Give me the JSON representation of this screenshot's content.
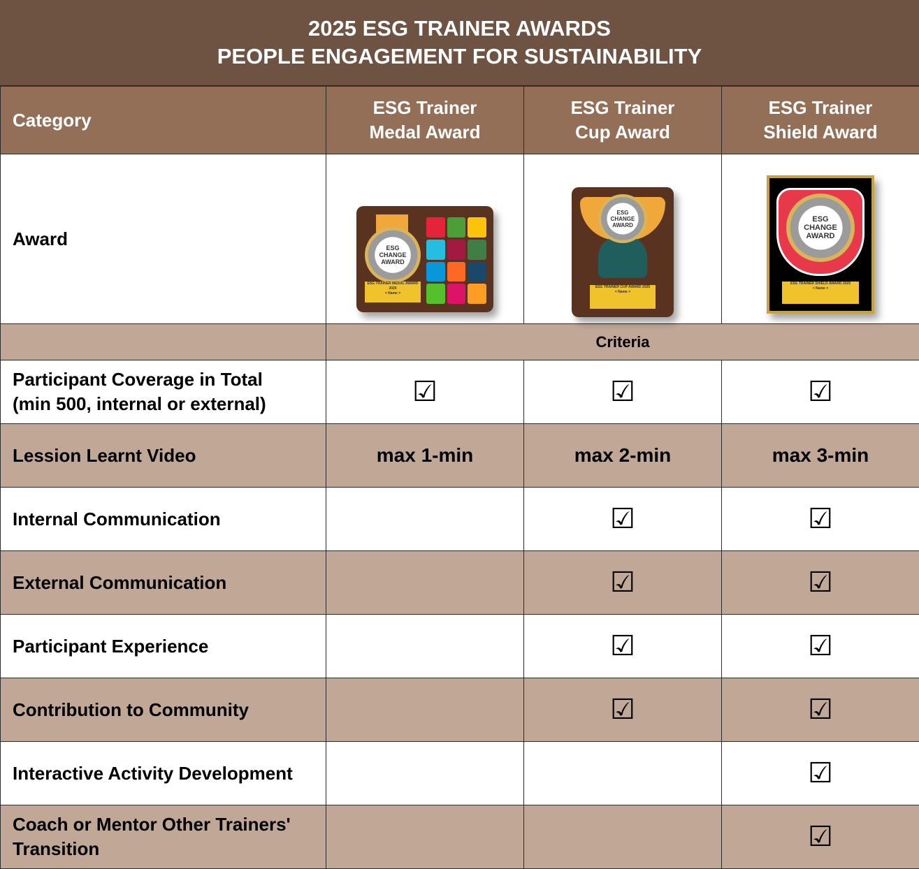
{
  "title": {
    "line1": "2025 ESG TRAINER AWARDS",
    "line2": "PEOPLE ENGAGEMENT FOR SUSTAINABILITY"
  },
  "header": {
    "category": "Category",
    "awards": [
      {
        "line1": "ESG Trainer",
        "line2": "Medal Award"
      },
      {
        "line1": "ESG Trainer",
        "line2": "Cup Award"
      },
      {
        "line1": "ESG Trainer",
        "line2": "Shield Award"
      }
    ]
  },
  "award_row": {
    "label": "Award",
    "badge": {
      "line1": "ESG",
      "line2": "CHANGE",
      "line3": "AWARD"
    },
    "medal_plate": "ESG TRAINER MEDAL AWARD 2025",
    "cup_plate": "ESG TRAINER CUP AWARD 2025",
    "shield_plate": "ESG TRAINER SHIELD AWARD 2025",
    "name_placeholder": "< Name >"
  },
  "criteria_label": "Criteria",
  "check_symbol": "☑",
  "rows": [
    {
      "label_line1": "Participant Coverage in Total",
      "label_line2": "(min 500, internal or external)",
      "medal": "☑",
      "cup": "☑",
      "shield": "☑"
    },
    {
      "label_line1": "Lession Learnt Video",
      "label_line2": "",
      "medal": "max 1-min",
      "cup": "max 2-min",
      "shield": "max 3-min"
    },
    {
      "label_line1": "Internal Communication",
      "label_line2": "",
      "medal": "",
      "cup": "☑",
      "shield": "☑"
    },
    {
      "label_line1": "External Communication",
      "label_line2": "",
      "medal": "",
      "cup": "☑",
      "shield": "☑"
    },
    {
      "label_line1": "Participant Experience",
      "label_line2": "",
      "medal": "",
      "cup": "☑",
      "shield": "☑"
    },
    {
      "label_line1": "Contribution to Community",
      "label_line2": "",
      "medal": "",
      "cup": "☑",
      "shield": "☑"
    },
    {
      "label_line1": "Interactive Activity Development",
      "label_line2": "",
      "medal": "",
      "cup": "",
      "shield": "☑"
    },
    {
      "label_line1": "Coach or Mentor Other Trainers'",
      "label_line2": "Transition",
      "medal": "",
      "cup": "",
      "shield": "☑"
    }
  ],
  "colors": {
    "title_bg": "#6e5242",
    "header_bg": "#946f58",
    "band_bg": "#c0a796",
    "plaque_brown": "#5a3320",
    "gold": "#f0c22c",
    "shield_red": "#e8394b",
    "cup_teal": "#1f5e5c"
  }
}
